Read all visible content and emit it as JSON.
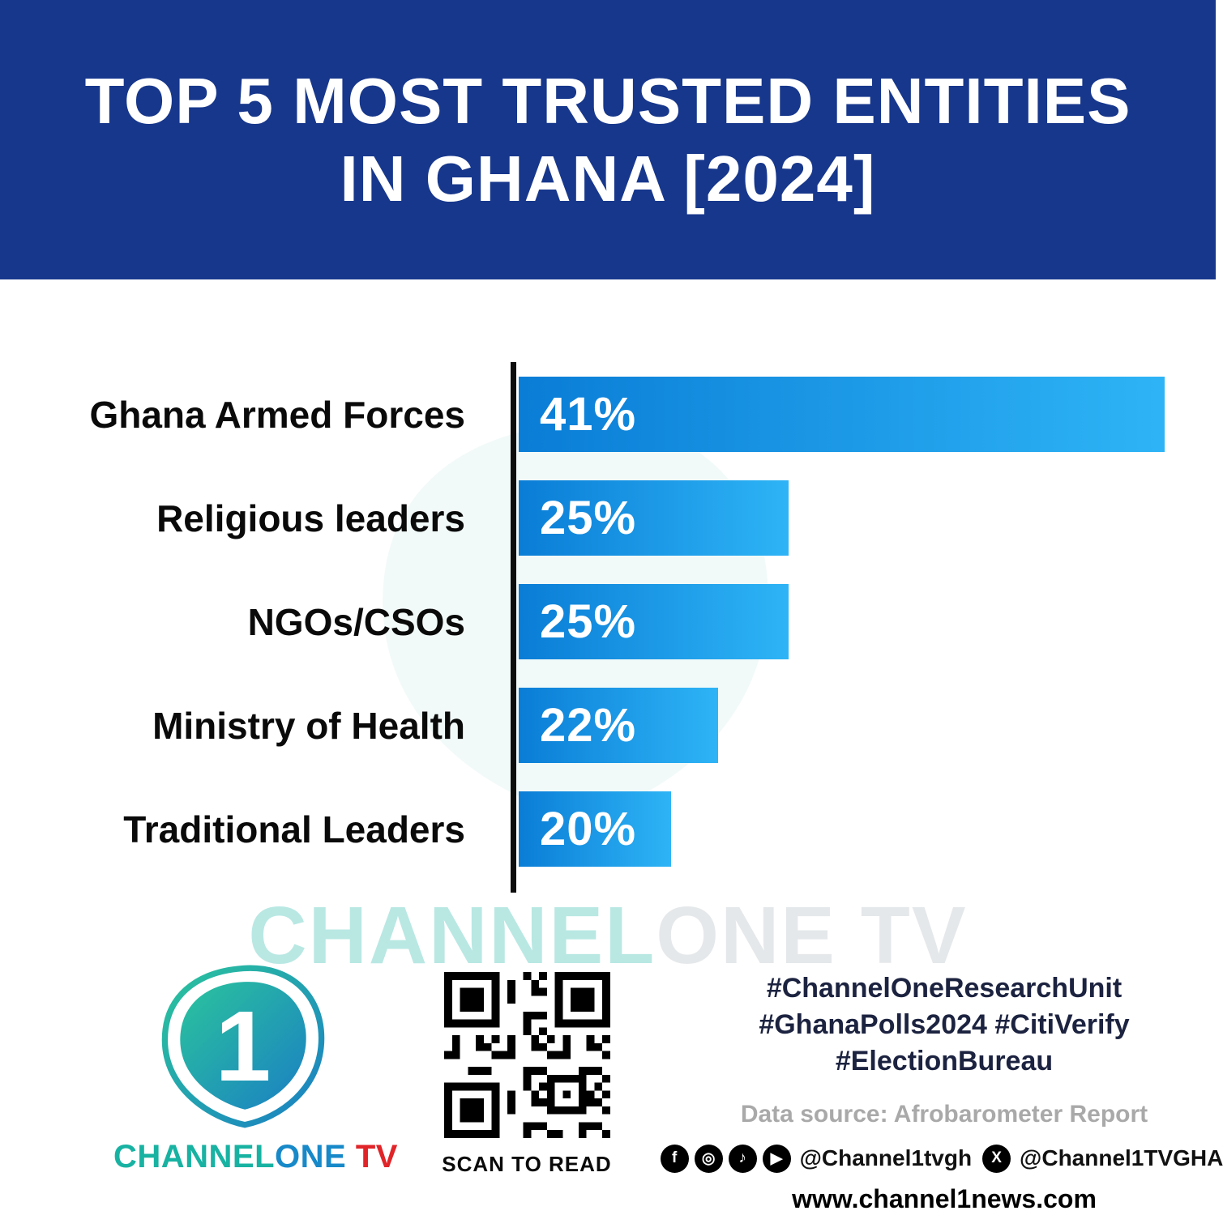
{
  "header": {
    "title_line1": "TOP 5 MOST TRUSTED ENTITIES",
    "title_line2": "IN GHANA [2024]"
  },
  "chart_data": {
    "type": "bar",
    "orientation": "horizontal",
    "title": "Top 5 Most Trusted Entities in Ghana [2024]",
    "categories": [
      "Ghana Armed Forces",
      "Religious leaders",
      "NGOs/CSOs",
      "Ministry of Health",
      "Traditional Leaders"
    ],
    "values": [
      41,
      25,
      25,
      22,
      20
    ],
    "value_labels": [
      "41%",
      "25%",
      "25%",
      "22%",
      "20%"
    ],
    "unit": "%",
    "xlim": [
      13.5,
      41
    ],
    "grid": false,
    "legend": false,
    "bar_gradient": [
      "#0a7dd6",
      "#2eb4f6"
    ]
  },
  "watermark": {
    "text_channel": "CHANNEL",
    "text_one": "ONE",
    "text_tv": " TV"
  },
  "footer": {
    "brand": {
      "channel": "CHANNEL",
      "one": "ONE",
      "tv": " TV",
      "digit": "1"
    },
    "qr_caption": "SCAN TO READ",
    "hashtags": [
      "#ChannelOneResearchUnit",
      "#GhanaPolls2024 #CitiVerify",
      "#ElectionBureau"
    ],
    "data_source": "Data source: Afrobarometer Report",
    "social_icons": [
      "facebook-icon",
      "instagram-icon",
      "tiktok-icon",
      "youtube-icon",
      "x-icon"
    ],
    "handle_main": "@Channel1tvgh",
    "handle_x": "@Channel1TVGHA",
    "website": "www.channel1news.com"
  },
  "colors": {
    "header_bg": "#17378c",
    "bar_start": "#0a7dd6",
    "bar_end": "#2eb4f6",
    "axis": "#0d0d0d",
    "brand_teal": "#18b2a2",
    "brand_red": "#e02428"
  }
}
